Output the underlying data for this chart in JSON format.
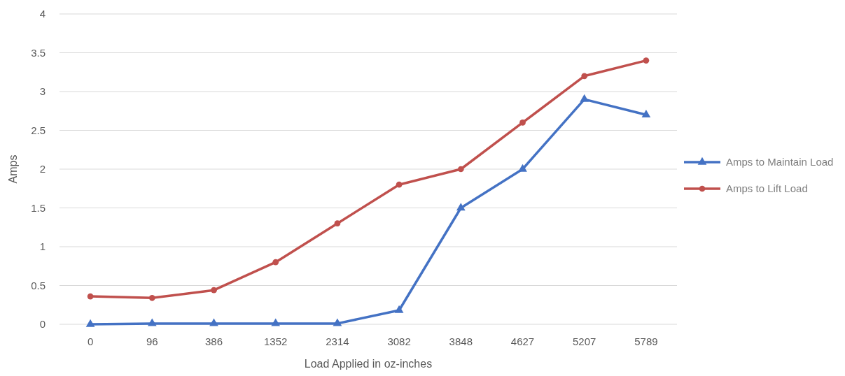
{
  "chart_data": {
    "type": "line",
    "xlabel": "Load Applied in oz-inches",
    "ylabel": "Amps",
    "categories": [
      "0",
      "96",
      "386",
      "1352",
      "2314",
      "3082",
      "3848",
      "4627",
      "5207",
      "5789"
    ],
    "series": [
      {
        "name": "Amps to Maintain Load",
        "color": "#4472c4",
        "marker": "triangle",
        "values": [
          0,
          0.01,
          0.01,
          0.01,
          0.01,
          0.18,
          1.5,
          2.0,
          2.9,
          2.7
        ]
      },
      {
        "name": "Amps to Lift Load",
        "color": "#c0504d",
        "marker": "circle",
        "values": [
          0.36,
          0.34,
          0.44,
          0.8,
          1.3,
          1.8,
          2.0,
          2.6,
          3.2,
          3.4
        ]
      }
    ],
    "ylim": [
      0,
      4
    ],
    "yticks": [
      0,
      {
        "value": 0.5,
        "label": "0.5"
      },
      1,
      {
        "value": 1.5,
        "label": "1.5"
      },
      2,
      {
        "value": 2.5,
        "label": "2.5"
      },
      3,
      {
        "value": 3.5,
        "label": "3.5"
      },
      4
    ],
    "grid": "y",
    "legend": "right",
    "line_style": "solid"
  }
}
